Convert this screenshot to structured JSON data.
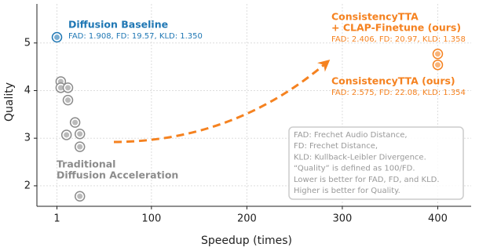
{
  "chart_data": {
    "type": "scatter",
    "xlabel": "Speedup (times)",
    "ylabel": "Quality",
    "xlim": [
      -20,
      435
    ],
    "ylim": [
      1.57,
      5.82
    ],
    "xticks": [
      1,
      100,
      200,
      300,
      400
    ],
    "yticks": [
      2,
      3,
      4,
      5
    ],
    "grid": true,
    "series": [
      {
        "color": "#1f77b4",
        "x": [
          1
        ],
        "values": [
          5.12
        ]
      },
      {
        "color": "#8c8c8c",
        "x": [
          5,
          5,
          12.5,
          12.5,
          20,
          25,
          11,
          25,
          25
        ],
        "values": [
          4.19,
          4.06,
          4.06,
          3.8,
          3.33,
          3.09,
          3.07,
          2.82,
          1.78
        ]
      },
      {
        "color": "#f58220",
        "x": [
          400,
          400
        ],
        "values": [
          4.77,
          4.54
        ]
      }
    ],
    "annotations": [
      {
        "color": "#1f77b4",
        "lines": [
          "Diffusion Baseline"
        ],
        "sub": "FAD: 1.908, FD: 19.57, KLD: 1.350"
      },
      {
        "color": "#8c8c8c",
        "lines": [
          "Traditional",
          "Diffusion Acceleration"
        ]
      },
      {
        "color": "#f58220",
        "lines": [
          "ConsistencyTTA",
          "+ CLAP-Finetune (ours)"
        ],
        "sub": "FAD: 2.406, FD: 20.97, KLD: 1.358"
      },
      {
        "color": "#f58220",
        "lines": [
          "ConsistencyTTA (ours)"
        ],
        "sub": "FAD: 2.575, FD: 22.08, KLD: 1.354"
      }
    ],
    "note": [
      "FAD: Frechet Audio Distance,",
      "FD: Frechet Distance,",
      "KLD: Kullback-Leibler Divergence.",
      "“Quality” is defined as 100/FD.",
      "Lower is better for FAD, FD, and KLD.",
      "Higher is better for Quality."
    ]
  }
}
